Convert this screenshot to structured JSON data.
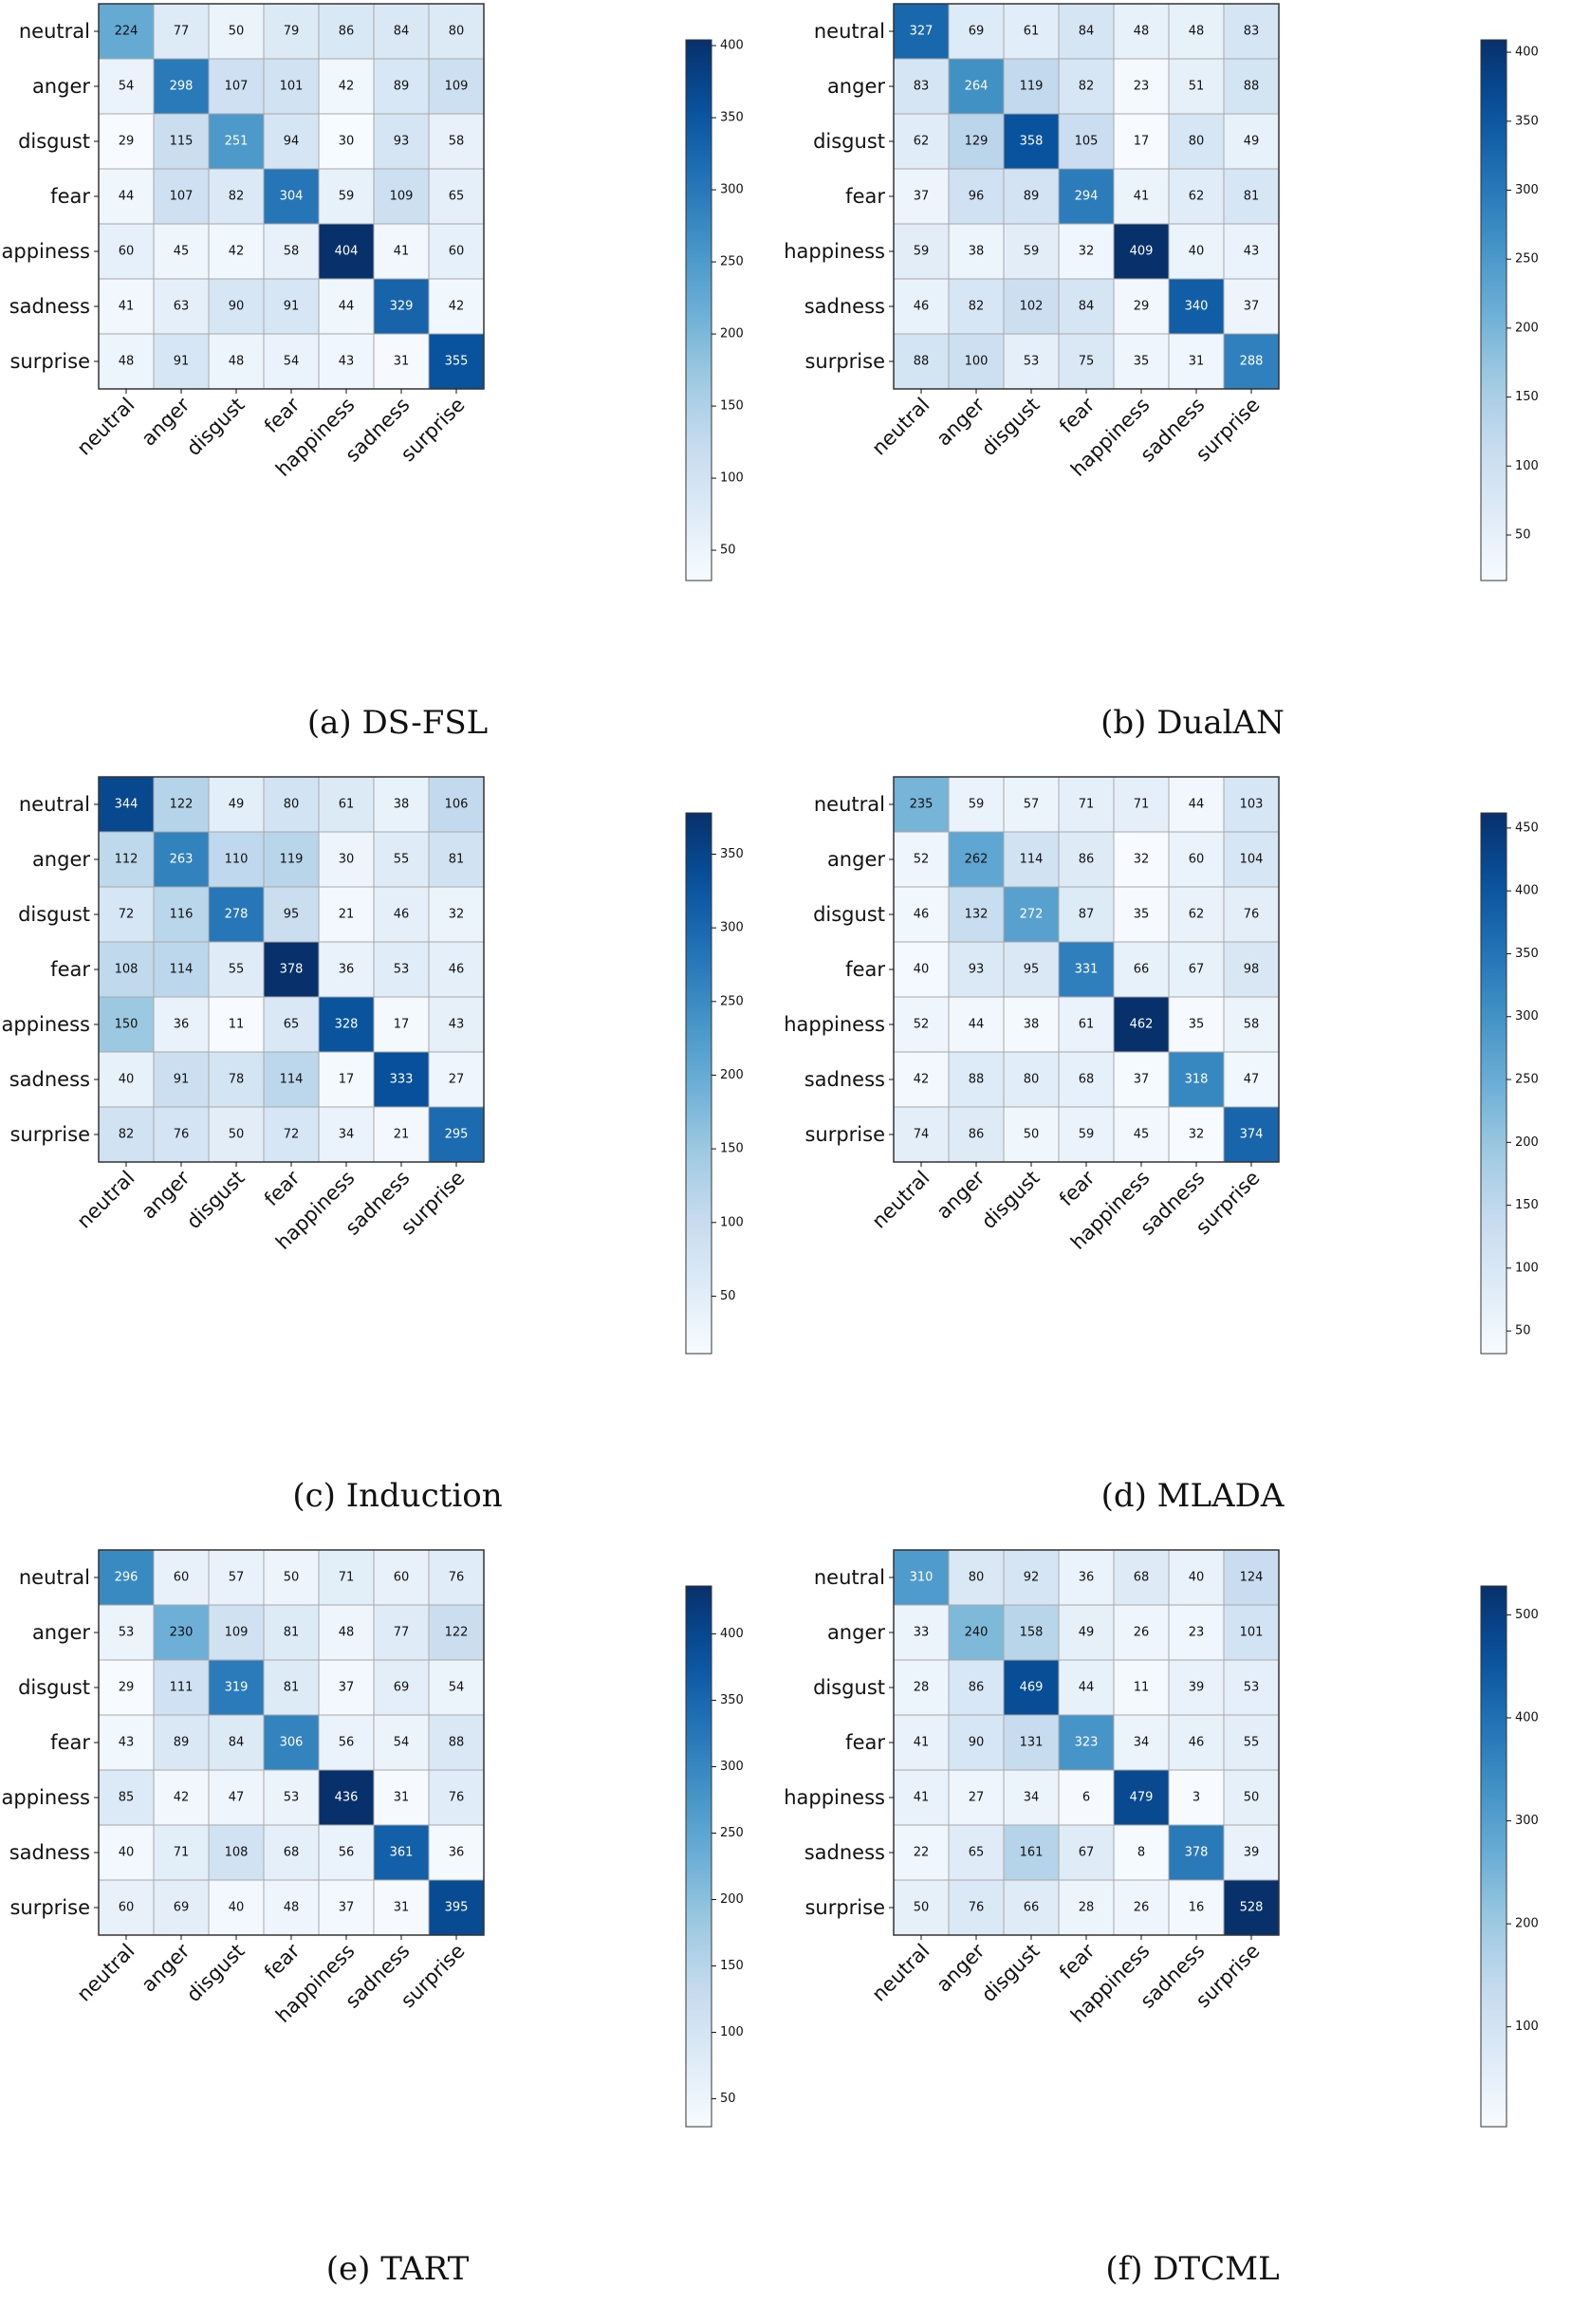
{
  "chart_data": [
    {
      "type": "heatmap",
      "panel_label": "(a)",
      "title": "DS-FSL",
      "rows": [
        "neutral",
        "anger",
        "disgust",
        "fear",
        "happiness",
        "sadness",
        "surprise"
      ],
      "cols": [
        "neutral",
        "anger",
        "disgust",
        "fear",
        "happiness",
        "sadness",
        "surprise"
      ],
      "values": [
        [
          224,
          77,
          50,
          79,
          86,
          84,
          80
        ],
        [
          54,
          298,
          107,
          101,
          42,
          89,
          109
        ],
        [
          29,
          115,
          251,
          94,
          30,
          93,
          58
        ],
        [
          44,
          107,
          82,
          304,
          59,
          109,
          65
        ],
        [
          60,
          45,
          42,
          58,
          404,
          41,
          60
        ],
        [
          41,
          63,
          90,
          91,
          44,
          329,
          42
        ],
        [
          48,
          91,
          48,
          54,
          43,
          31,
          355
        ]
      ],
      "colorbar": {
        "range": [
          29,
          404
        ],
        "ticks": [
          50,
          100,
          150,
          200,
          250,
          300,
          350,
          400
        ]
      }
    },
    {
      "type": "heatmap",
      "panel_label": "(b)",
      "title": "DualAN",
      "rows": [
        "neutral",
        "anger",
        "disgust",
        "fear",
        "happiness",
        "sadness",
        "surprise"
      ],
      "cols": [
        "neutral",
        "anger",
        "disgust",
        "fear",
        "happiness",
        "sadness",
        "surprise"
      ],
      "values": [
        [
          327,
          69,
          61,
          84,
          48,
          48,
          83
        ],
        [
          83,
          264,
          119,
          82,
          23,
          51,
          88
        ],
        [
          62,
          129,
          358,
          105,
          17,
          80,
          49
        ],
        [
          37,
          96,
          89,
          294,
          41,
          62,
          81
        ],
        [
          59,
          38,
          59,
          32,
          409,
          40,
          43
        ],
        [
          46,
          82,
          102,
          84,
          29,
          340,
          37
        ],
        [
          88,
          100,
          53,
          75,
          35,
          31,
          288
        ]
      ],
      "colorbar": {
        "range": [
          17,
          409
        ],
        "ticks": [
          50,
          100,
          150,
          200,
          250,
          300,
          350,
          400
        ]
      }
    },
    {
      "type": "heatmap",
      "panel_label": "(c)",
      "title": "Induction",
      "rows": [
        "neutral",
        "anger",
        "disgust",
        "fear",
        "happiness",
        "sadness",
        "surprise"
      ],
      "cols": [
        "neutral",
        "anger",
        "disgust",
        "fear",
        "happiness",
        "sadness",
        "surprise"
      ],
      "values": [
        [
          344,
          122,
          49,
          80,
          61,
          38,
          106
        ],
        [
          112,
          263,
          110,
          119,
          30,
          55,
          81
        ],
        [
          72,
          116,
          278,
          95,
          21,
          46,
          32
        ],
        [
          108,
          114,
          55,
          378,
          36,
          53,
          46
        ],
        [
          150,
          36,
          11,
          65,
          328,
          17,
          43
        ],
        [
          40,
          91,
          78,
          114,
          17,
          333,
          27
        ],
        [
          82,
          76,
          50,
          72,
          34,
          21,
          295
        ]
      ],
      "colorbar": {
        "range": [
          11,
          378
        ],
        "ticks": [
          50,
          100,
          150,
          200,
          250,
          300,
          350
        ]
      }
    },
    {
      "type": "heatmap",
      "panel_label": "(d)",
      "title": "MLADA",
      "rows": [
        "neutral",
        "anger",
        "disgust",
        "fear",
        "happiness",
        "sadness",
        "surprise"
      ],
      "cols": [
        "neutral",
        "anger",
        "disgust",
        "fear",
        "happiness",
        "sadness",
        "surprise"
      ],
      "values": [
        [
          235,
          59,
          57,
          71,
          71,
          44,
          103
        ],
        [
          52,
          262,
          114,
          86,
          32,
          60,
          104
        ],
        [
          46,
          132,
          272,
          87,
          35,
          62,
          76
        ],
        [
          40,
          93,
          95,
          331,
          66,
          67,
          98
        ],
        [
          52,
          44,
          38,
          61,
          462,
          35,
          58
        ],
        [
          42,
          88,
          80,
          68,
          37,
          318,
          47
        ],
        [
          74,
          86,
          50,
          59,
          45,
          32,
          374
        ]
      ],
      "colorbar": {
        "range": [
          32,
          462
        ],
        "ticks": [
          50,
          100,
          150,
          200,
          250,
          300,
          350,
          400,
          450
        ]
      }
    },
    {
      "type": "heatmap",
      "panel_label": "(e)",
      "title": "TART",
      "rows": [
        "neutral",
        "anger",
        "disgust",
        "fear",
        "happiness",
        "sadness",
        "surprise"
      ],
      "cols": [
        "neutral",
        "anger",
        "disgust",
        "fear",
        "happiness",
        "sadness",
        "surprise"
      ],
      "values": [
        [
          296,
          60,
          57,
          50,
          71,
          60,
          76
        ],
        [
          53,
          230,
          109,
          81,
          48,
          77,
          122
        ],
        [
          29,
          111,
          319,
          81,
          37,
          69,
          54
        ],
        [
          43,
          89,
          84,
          306,
          56,
          54,
          88
        ],
        [
          85,
          42,
          47,
          53,
          436,
          31,
          76
        ],
        [
          40,
          71,
          108,
          68,
          56,
          361,
          36
        ],
        [
          60,
          69,
          40,
          48,
          37,
          31,
          395
        ]
      ],
      "colorbar": {
        "range": [
          29,
          436
        ],
        "ticks": [
          50,
          100,
          150,
          200,
          250,
          300,
          350,
          400
        ]
      }
    },
    {
      "type": "heatmap",
      "panel_label": "(f)",
      "title": "DTCML",
      "rows": [
        "neutral",
        "anger",
        "disgust",
        "fear",
        "happiness",
        "sadness",
        "surprise"
      ],
      "cols": [
        "neutral",
        "anger",
        "disgust",
        "fear",
        "happiness",
        "sadness",
        "surprise"
      ],
      "values": [
        [
          310,
          80,
          92,
          36,
          68,
          40,
          124
        ],
        [
          33,
          240,
          158,
          49,
          26,
          23,
          101
        ],
        [
          28,
          86,
          469,
          44,
          11,
          39,
          53
        ],
        [
          41,
          90,
          131,
          323,
          34,
          46,
          55
        ],
        [
          41,
          27,
          34,
          6,
          479,
          3,
          50
        ],
        [
          22,
          65,
          161,
          67,
          8,
          378,
          39
        ],
        [
          50,
          76,
          66,
          28,
          26,
          16,
          528
        ]
      ],
      "colorbar": {
        "range": [
          3,
          528
        ],
        "ticks": [
          100,
          200,
          300,
          400,
          500
        ]
      }
    }
  ],
  "colors": {
    "colormap": "Blues",
    "low": "#f7fbff",
    "mid": "#6baed6",
    "high": "#08306b",
    "cell_border": "#a8a8a8",
    "frame": "#333333"
  }
}
